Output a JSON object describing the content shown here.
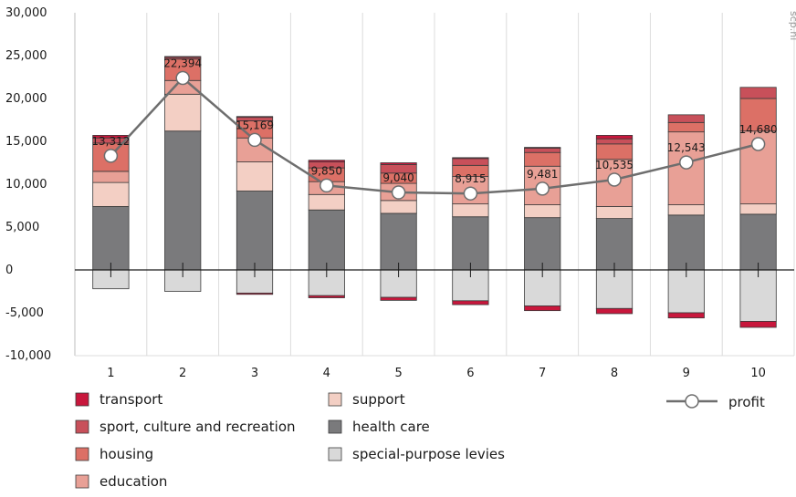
{
  "chart_data": {
    "type": "bar",
    "stacked": true,
    "title": "",
    "xlabel": "",
    "ylabel": "",
    "categories": [
      "1",
      "2",
      "3",
      "4",
      "5",
      "6",
      "7",
      "8",
      "9",
      "10"
    ],
    "ylim": [
      -10000,
      30000
    ],
    "yticks": [
      -10000,
      -5000,
      0,
      5000,
      10000,
      15000,
      20000,
      25000,
      30000
    ],
    "ytick_labels": [
      "-10,000",
      "-5,000",
      "0",
      "5,000",
      "10,000",
      "15,000",
      "20,000",
      "25,000",
      "30,000"
    ],
    "grid": "vertical lines between categories",
    "legend_position": "bottom",
    "watermark": "scp.nl",
    "series": [
      {
        "name": "special-purpose levies",
        "color": "#d9d9d9",
        "values": [
          -2200,
          -2500,
          -2700,
          -3000,
          -3200,
          -3600,
          -4200,
          -4500,
          -5000,
          -6000
        ]
      },
      {
        "name": "transport (negative)",
        "color": "#c8173c",
        "legend": false,
        "values": [
          0,
          0,
          -150,
          -250,
          -350,
          -450,
          -550,
          -600,
          -600,
          -700
        ]
      },
      {
        "name": "health care",
        "color": "#7a7a7c",
        "values": [
          7400,
          16200,
          9200,
          7000,
          6600,
          6200,
          6100,
          6000,
          6400,
          6500
        ]
      },
      {
        "name": "support",
        "color": "#f3cfc4",
        "values": [
          2800,
          4300,
          3400,
          1800,
          1500,
          1500,
          1500,
          1400,
          1200,
          1200
        ]
      },
      {
        "name": "education",
        "color": "#e8a096",
        "values": [
          1300,
          1600,
          2800,
          1500,
          2000,
          3200,
          4500,
          5500,
          8500,
          8500
        ]
      },
      {
        "name": "housing",
        "color": "#dc7066",
        "values": [
          3300,
          2500,
          2000,
          1600,
          1200,
          1300,
          1600,
          1800,
          1100,
          3800
        ]
      },
      {
        "name": "sport, culture and recreation",
        "color": "#c8505a",
        "values": [
          600,
          200,
          400,
          700,
          1000,
          800,
          500,
          600,
          900,
          1300
        ]
      },
      {
        "name": "transport",
        "color": "#c8173c",
        "values": [
          300,
          100,
          100,
          200,
          200,
          100,
          100,
          400,
          0,
          0
        ]
      }
    ],
    "line": {
      "name": "profit",
      "color": "#6e6e6e",
      "values": [
        13312,
        22394,
        15169,
        9850,
        9040,
        8915,
        9481,
        10535,
        12543,
        14680
      ],
      "labels": [
        "13,312",
        "22,394",
        "15,169",
        "9,850",
        "9,040",
        "8,915",
        "9,481",
        "10,535",
        "12,543",
        "14,680"
      ]
    },
    "legend": {
      "col1": [
        "transport",
        "sport, culture and recreation",
        "housing",
        "education"
      ],
      "col2": [
        "support",
        "health care",
        "special-purpose levies"
      ],
      "line": "profit"
    }
  }
}
